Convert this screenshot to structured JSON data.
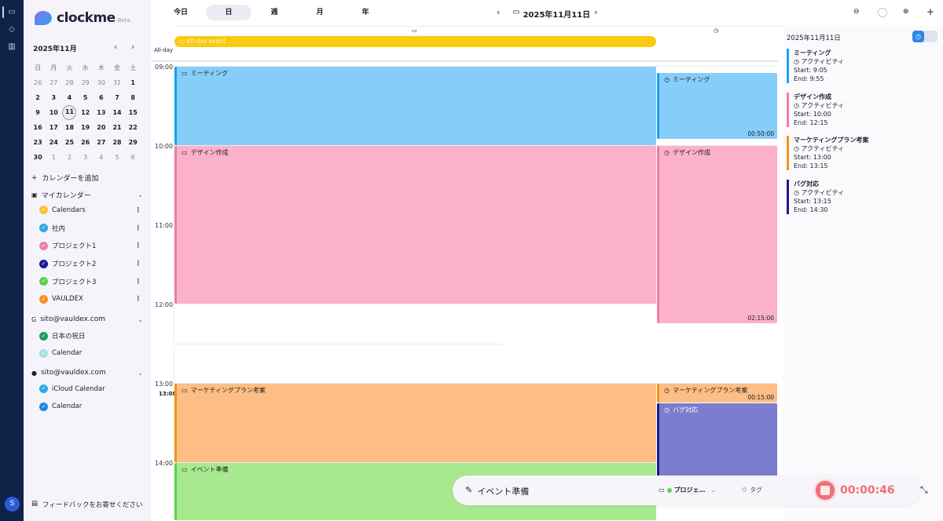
{
  "app": {
    "name": "clockme",
    "badge": "Beta"
  },
  "rail": {
    "icons": [
      "calendar-icon",
      "tag-icon",
      "chart-icon"
    ],
    "avatar": "S"
  },
  "mini_calendar": {
    "title": "2025年11月",
    "weekdays": [
      "日",
      "月",
      "火",
      "水",
      "木",
      "金",
      "土"
    ],
    "days": [
      [
        "26",
        "27",
        "28",
        "29",
        "30",
        "31",
        "1"
      ],
      [
        "2",
        "3",
        "4",
        "5",
        "6",
        "7",
        "8"
      ],
      [
        "9",
        "10",
        "11",
        "12",
        "13",
        "14",
        "15"
      ],
      [
        "16",
        "17",
        "18",
        "19",
        "20",
        "21",
        "22"
      ],
      [
        "23",
        "24",
        "25",
        "26",
        "27",
        "28",
        "29"
      ],
      [
        "30",
        "1",
        "2",
        "3",
        "4",
        "5",
        "6"
      ]
    ],
    "today": "11"
  },
  "sidebar": {
    "add_calendar": "カレンダーを追加",
    "groups": [
      {
        "label": "マイカレンダー",
        "icon": "calendar-group-icon",
        "items": [
          {
            "label": "Calendars",
            "color": "#f7c52b",
            "menu": true
          },
          {
            "label": "社内",
            "color": "#2ea8e8",
            "menu": true
          },
          {
            "label": "プロジェクト1",
            "color": "#ef7ea4",
            "menu": true
          },
          {
            "label": "プロジェクト2",
            "color": "#1d1a8f",
            "menu": true
          },
          {
            "label": "プロジェクト3",
            "color": "#5fd04a",
            "menu": true
          },
          {
            "label": "VAULDEX",
            "color": "#f3921f",
            "menu": true
          }
        ]
      },
      {
        "label": "sito@vauldex.com",
        "icon": "google-icon",
        "items": [
          {
            "label": "日本の祝日",
            "color": "#1f9d5a"
          },
          {
            "label": "Calendar",
            "color": "#a8dfe0"
          }
        ]
      },
      {
        "label": "sito@vauldex.com",
        "icon": "apple-icon",
        "items": [
          {
            "label": "iCloud Calendar",
            "color": "#2ea8e8"
          },
          {
            "label": "Calendar",
            "color": "#1e88e5"
          }
        ]
      }
    ],
    "feedback": "フィードバックをお寄せください"
  },
  "toolbar": {
    "today": "今日",
    "views": [
      "日",
      "週",
      "月",
      "年"
    ],
    "active_view": "日",
    "date": "2025年11月11日"
  },
  "day_view": {
    "allday_label": "All-day",
    "allday_event": "All-day event",
    "hours": [
      "09:00",
      "10:00",
      "11:00",
      "12:00",
      "13:00",
      "14:00"
    ],
    "now": "13:08",
    "planned": [
      {
        "title": "ミーティング",
        "start": "09:00",
        "end": "10:00",
        "bg": "#87cdfa",
        "border": "#1aa3ef"
      },
      {
        "title": "デザイン作成",
        "start": "10:00",
        "end": "12:00",
        "bg": "#fbb0cb",
        "border": "#ef7ea4"
      },
      {
        "title": "マーケティングプラン考案",
        "start": "13:00",
        "end": "14:00",
        "bg": "#fdbd84",
        "border": "#f3921f"
      },
      {
        "title": "イベント準備",
        "start": "14:00",
        "end": "15:00",
        "bg": "#a8e990",
        "border": "#5fd04a"
      }
    ],
    "tracked": [
      {
        "title": "ミーティング",
        "start": "09:05",
        "end": "09:55",
        "duration": "00:50:00",
        "bg": "#87cdfa",
        "border": "#1aa3ef"
      },
      {
        "title": "デザイン作成",
        "start": "10:00",
        "end": "12:15",
        "duration": "02:15:00",
        "bg": "#fbb0cb",
        "border": "#ef7ea4"
      },
      {
        "title": "マーケティングプラン考案",
        "start": "13:00",
        "end": "13:15",
        "duration": "00:15:00",
        "bg": "#fdbd84",
        "border": "#f3921f"
      },
      {
        "title": "バグ対応",
        "start": "13:15",
        "end": "14:30",
        "duration": "",
        "bg": "#7b7dcf",
        "border": "#1d1a8f"
      }
    ]
  },
  "activity_panel": {
    "date": "2025年11月11日",
    "items": [
      {
        "title": "ミーティング",
        "type": "アクティビティ",
        "start": "Start: 9:05",
        "end": "End: 9:55",
        "color": "#1aa3ef"
      },
      {
        "title": "デザイン作成",
        "type": "アクティビティ",
        "start": "Start: 10:00",
        "end": "End: 12:15",
        "color": "#ef7ea4"
      },
      {
        "title": "マーケティングプラン考案",
        "type": "アクティビティ",
        "start": "Start: 13:00",
        "end": "End: 13:15",
        "color": "#f3921f"
      },
      {
        "title": "バグ対応",
        "type": "アクティビティ",
        "start": "Start: 13:15",
        "end": "End: 14:30",
        "color": "#1d1a8f"
      }
    ]
  },
  "timer_bar": {
    "task": "イベント準備",
    "project": "プロジェ…",
    "project_color": "#5fd04a",
    "tag": "タグ",
    "elapsed": "00:00:46",
    "stop_color": "#f0707a"
  }
}
